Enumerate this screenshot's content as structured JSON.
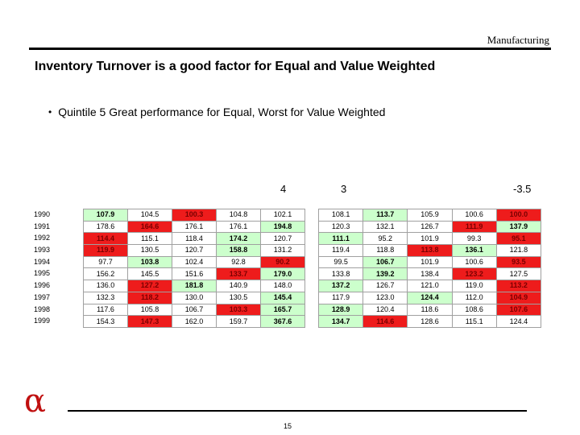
{
  "header": {
    "label": "Manufacturing"
  },
  "title": "Inventory Turnover is a good factor for Equal and Value Weighted",
  "bullet": "Quintile 5 Great performance for Equal, Worst for Value Weighted",
  "column_labels": {
    "left_table": "4",
    "right_table": "3",
    "right_edge": "-3.5"
  },
  "years": [
    "1990",
    "1991",
    "1992",
    "1993",
    "1994",
    "1995",
    "1996",
    "1997",
    "1998",
    "1999"
  ],
  "colors": {
    "good": "#ccffcc",
    "bad": "#ee1c1c",
    "neutral": "#ffffff",
    "logo": "#c01010"
  },
  "table_left": {
    "rows": [
      [
        {
          "v": "107.9",
          "c": "g"
        },
        {
          "v": "104.5",
          "c": "w"
        },
        {
          "v": "100.3",
          "c": "r"
        },
        {
          "v": "104.8",
          "c": "w"
        },
        {
          "v": "102.1",
          "c": "w"
        }
      ],
      [
        {
          "v": "178.6",
          "c": "w"
        },
        {
          "v": "164.6",
          "c": "r"
        },
        {
          "v": "176.1",
          "c": "w"
        },
        {
          "v": "176.1",
          "c": "w"
        },
        {
          "v": "194.8",
          "c": "g"
        }
      ],
      [
        {
          "v": "114.4",
          "c": "r"
        },
        {
          "v": "115.1",
          "c": "w"
        },
        {
          "v": "118.4",
          "c": "w"
        },
        {
          "v": "174.2",
          "c": "g"
        },
        {
          "v": "120.7",
          "c": "w"
        }
      ],
      [
        {
          "v": "119.9",
          "c": "r"
        },
        {
          "v": "130.5",
          "c": "w"
        },
        {
          "v": "120.7",
          "c": "w"
        },
        {
          "v": "158.8",
          "c": "g"
        },
        {
          "v": "131.2",
          "c": "w"
        }
      ],
      [
        {
          "v": "97.7",
          "c": "w"
        },
        {
          "v": "103.8",
          "c": "g"
        },
        {
          "v": "102.4",
          "c": "w"
        },
        {
          "v": "92.8",
          "c": "w"
        },
        {
          "v": "90.2",
          "c": "r"
        }
      ],
      [
        {
          "v": "156.2",
          "c": "w"
        },
        {
          "v": "145.5",
          "c": "w"
        },
        {
          "v": "151.6",
          "c": "w"
        },
        {
          "v": "133.7",
          "c": "r"
        },
        {
          "v": "179.0",
          "c": "g"
        }
      ],
      [
        {
          "v": "136.0",
          "c": "w"
        },
        {
          "v": "127.2",
          "c": "r"
        },
        {
          "v": "181.8",
          "c": "g"
        },
        {
          "v": "140.9",
          "c": "w"
        },
        {
          "v": "148.0",
          "c": "w"
        }
      ],
      [
        {
          "v": "132.3",
          "c": "w"
        },
        {
          "v": "118.2",
          "c": "r"
        },
        {
          "v": "130.0",
          "c": "w"
        },
        {
          "v": "130.5",
          "c": "w"
        },
        {
          "v": "145.4",
          "c": "g"
        }
      ],
      [
        {
          "v": "117.6",
          "c": "w"
        },
        {
          "v": "105.8",
          "c": "w"
        },
        {
          "v": "106.7",
          "c": "w"
        },
        {
          "v": "103.3",
          "c": "r"
        },
        {
          "v": "165.7",
          "c": "g"
        }
      ],
      [
        {
          "v": "154.3",
          "c": "w"
        },
        {
          "v": "147.3",
          "c": "r"
        },
        {
          "v": "162.0",
          "c": "w"
        },
        {
          "v": "159.7",
          "c": "w"
        },
        {
          "v": "367.6",
          "c": "g"
        }
      ]
    ]
  },
  "table_right": {
    "rows": [
      [
        {
          "v": "108.1",
          "c": "w"
        },
        {
          "v": "113.7",
          "c": "g"
        },
        {
          "v": "105.9",
          "c": "w"
        },
        {
          "v": "100.6",
          "c": "w"
        },
        {
          "v": "100.0",
          "c": "r"
        }
      ],
      [
        {
          "v": "120.3",
          "c": "w"
        },
        {
          "v": "132.1",
          "c": "w"
        },
        {
          "v": "126.7",
          "c": "w"
        },
        {
          "v": "111.9",
          "c": "r"
        },
        {
          "v": "137.9",
          "c": "g"
        }
      ],
      [
        {
          "v": "111.1",
          "c": "g"
        },
        {
          "v": "95.2",
          "c": "w"
        },
        {
          "v": "101.9",
          "c": "w"
        },
        {
          "v": "99.3",
          "c": "w"
        },
        {
          "v": "95.1",
          "c": "r"
        }
      ],
      [
        {
          "v": "119.4",
          "c": "w"
        },
        {
          "v": "118.8",
          "c": "w"
        },
        {
          "v": "113.8",
          "c": "r"
        },
        {
          "v": "136.1",
          "c": "g"
        },
        {
          "v": "121.8",
          "c": "w"
        }
      ],
      [
        {
          "v": "99.5",
          "c": "w"
        },
        {
          "v": "106.7",
          "c": "g"
        },
        {
          "v": "101.9",
          "c": "w"
        },
        {
          "v": "100.6",
          "c": "w"
        },
        {
          "v": "93.5",
          "c": "r"
        }
      ],
      [
        {
          "v": "133.8",
          "c": "w"
        },
        {
          "v": "139.2",
          "c": "g"
        },
        {
          "v": "138.4",
          "c": "w"
        },
        {
          "v": "123.2",
          "c": "r"
        },
        {
          "v": "127.5",
          "c": "w"
        }
      ],
      [
        {
          "v": "137.2",
          "c": "g"
        },
        {
          "v": "126.7",
          "c": "w"
        },
        {
          "v": "121.0",
          "c": "w"
        },
        {
          "v": "119.0",
          "c": "w"
        },
        {
          "v": "113.2",
          "c": "r"
        }
      ],
      [
        {
          "v": "117.9",
          "c": "w"
        },
        {
          "v": "123.0",
          "c": "w"
        },
        {
          "v": "124.4",
          "c": "g"
        },
        {
          "v": "112.0",
          "c": "w"
        },
        {
          "v": "104.9",
          "c": "r"
        }
      ],
      [
        {
          "v": "128.9",
          "c": "g"
        },
        {
          "v": "120.4",
          "c": "w"
        },
        {
          "v": "118.6",
          "c": "w"
        },
        {
          "v": "108.6",
          "c": "w"
        },
        {
          "v": "107.6",
          "c": "r"
        }
      ],
      [
        {
          "v": "134.7",
          "c": "g"
        },
        {
          "v": "114.6",
          "c": "r"
        },
        {
          "v": "128.6",
          "c": "w"
        },
        {
          "v": "115.1",
          "c": "w"
        },
        {
          "v": "124.4",
          "c": "w"
        }
      ]
    ]
  },
  "footer": {
    "logo_glyph": "α",
    "page_number": "15"
  }
}
